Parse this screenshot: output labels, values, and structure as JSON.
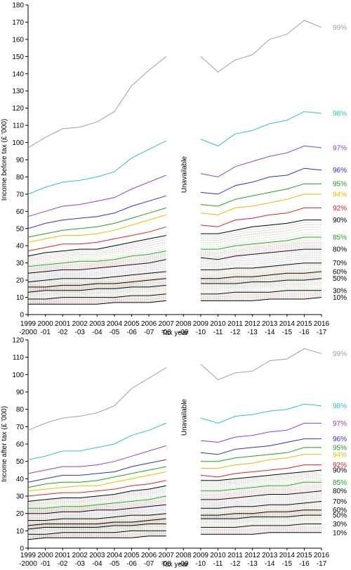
{
  "chart_data": [
    {
      "type": "line",
      "panel": "top",
      "ylabel": "Income before tax (£ '000)",
      "xlabel": "Tax year",
      "ylim": [
        0,
        180
      ],
      "yticks": [
        0,
        10,
        20,
        30,
        40,
        50,
        60,
        70,
        80,
        90,
        100,
        110,
        120,
        130,
        140,
        150,
        160,
        170,
        180
      ],
      "categories": [
        {
          "top": "1999",
          "bottom": "-2000"
        },
        {
          "top": "2000",
          "bottom": "-01"
        },
        {
          "top": "2001",
          "bottom": "-02"
        },
        {
          "top": "2002",
          "bottom": "-03"
        },
        {
          "top": "2003",
          "bottom": "-04"
        },
        {
          "top": "2004",
          "bottom": "-05"
        },
        {
          "top": "2005",
          "bottom": "-06"
        },
        {
          "top": "2006",
          "bottom": "-07"
        },
        {
          "top": "2007",
          "bottom": "-08"
        },
        {
          "top": "2008",
          "bottom": "-09"
        },
        {
          "top": "2009",
          "bottom": "-10"
        },
        {
          "top": "2010",
          "bottom": "-11"
        },
        {
          "top": "2011",
          "bottom": "-12"
        },
        {
          "top": "2012",
          "bottom": "-13"
        },
        {
          "top": "2013",
          "bottom": "-14"
        },
        {
          "top": "2014",
          "bottom": "-15"
        },
        {
          "top": "2015",
          "bottom": "-16"
        },
        {
          "top": "2016",
          "bottom": "-17"
        }
      ],
      "gap_label": "Unavailable",
      "series": [
        {
          "name": "99%",
          "color": "#a0a0a0",
          "values": [
            97,
            103,
            108,
            109,
            112,
            118,
            133,
            142,
            150,
            null,
            150,
            141,
            148,
            151,
            160,
            163,
            171,
            167
          ]
        },
        {
          "name": "98%",
          "color": "#2ec4c4",
          "values": [
            70,
            74,
            77,
            78,
            80,
            83,
            91,
            96,
            101,
            null,
            102,
            98,
            105,
            107,
            111,
            113,
            118,
            117
          ]
        },
        {
          "name": "97%",
          "color": "#9040c0",
          "values": [
            57,
            60,
            63,
            64,
            66,
            68,
            73,
            77,
            81,
            null,
            82,
            80,
            86,
            89,
            92,
            94,
            98,
            97
          ]
        },
        {
          "name": "96%",
          "color": "#3030c0",
          "values": [
            50,
            53,
            55,
            56,
            57,
            59,
            63,
            66,
            69,
            null,
            71,
            70,
            75,
            77,
            80,
            81,
            85,
            84
          ]
        },
        {
          "name": "95%",
          "color": "#20a020",
          "values": [
            45,
            47,
            49,
            50,
            51,
            53,
            56,
            59,
            62,
            null,
            64,
            63,
            67,
            69,
            71,
            73,
            76,
            76
          ]
        },
        {
          "name": "94%",
          "color": "#e0c000",
          "values": [
            42,
            44,
            46,
            46,
            47,
            49,
            52,
            55,
            58,
            null,
            59,
            58,
            62,
            63,
            65,
            67,
            70,
            70
          ]
        },
        {
          "name": "92%",
          "color": "#e02020",
          "values": [
            37,
            39,
            41,
            41,
            42,
            44,
            46,
            48,
            51,
            null,
            52,
            51,
            55,
            56,
            58,
            59,
            62,
            62
          ]
        },
        {
          "name": "90%",
          "color": "#000000",
          "values": [
            34,
            36,
            37,
            38,
            38,
            40,
            42,
            44,
            46,
            null,
            47,
            47,
            49,
            51,
            52,
            53,
            55,
            55
          ]
        },
        {
          "name": "85%",
          "color": "#20a020",
          "values": [
            28,
            29,
            30,
            31,
            31,
            32,
            34,
            35,
            37,
            null,
            38,
            38,
            40,
            41,
            42,
            43,
            45,
            45
          ]
        },
        {
          "name": "80%",
          "color": "#000000",
          "values": [
            24,
            25,
            26,
            26,
            27,
            28,
            29,
            30,
            32,
            null,
            33,
            32,
            34,
            35,
            36,
            37,
            38,
            38
          ]
        },
        {
          "name": "70%",
          "color": "#000000",
          "values": [
            19,
            20,
            21,
            21,
            21,
            22,
            23,
            24,
            25,
            null,
            26,
            26,
            27,
            27,
            28,
            29,
            30,
            30
          ]
        },
        {
          "name": "60%",
          "color": "#000000",
          "values": [
            16,
            16,
            17,
            17,
            18,
            18,
            19,
            20,
            21,
            null,
            21,
            21,
            22,
            22,
            23,
            24,
            24,
            25
          ]
        },
        {
          "name": "50%",
          "color": "#000000",
          "values": [
            13,
            14,
            14,
            14,
            15,
            15,
            16,
            16,
            17,
            null,
            18,
            18,
            18,
            19,
            19,
            20,
            20,
            21
          ]
        },
        {
          "name": "30%",
          "color": "#000000",
          "values": [
            9,
            9,
            10,
            10,
            10,
            10,
            11,
            11,
            12,
            null,
            12,
            12,
            13,
            13,
            13,
            14,
            14,
            14
          ]
        },
        {
          "name": "10%",
          "color": "#000000",
          "values": [
            6,
            6,
            6,
            6,
            6,
            7,
            7,
            7,
            8,
            null,
            8,
            8,
            8,
            8,
            9,
            9,
            9,
            10
          ]
        }
      ]
    },
    {
      "type": "line",
      "panel": "bottom",
      "ylabel": "Income after tax (£ '000)",
      "xlabel": "Tax year",
      "ylim": [
        0,
        120
      ],
      "yticks": [
        0,
        10,
        20,
        30,
        40,
        50,
        60,
        70,
        80,
        90,
        100,
        110,
        120
      ],
      "categories": [
        {
          "top": "1999",
          "bottom": "-2000"
        },
        {
          "top": "2000",
          "bottom": "-01"
        },
        {
          "top": "2001",
          "bottom": "-02"
        },
        {
          "top": "2002",
          "bottom": "-03"
        },
        {
          "top": "2003",
          "bottom": "-04"
        },
        {
          "top": "2004",
          "bottom": "-05"
        },
        {
          "top": "2005",
          "bottom": "-06"
        },
        {
          "top": "2006",
          "bottom": "-07"
        },
        {
          "top": "2007",
          "bottom": "-08"
        },
        {
          "top": "2008",
          "bottom": "-09"
        },
        {
          "top": "2009",
          "bottom": "-10"
        },
        {
          "top": "2010",
          "bottom": "-11"
        },
        {
          "top": "2011",
          "bottom": "-12"
        },
        {
          "top": "2012",
          "bottom": "-13"
        },
        {
          "top": "2013",
          "bottom": "-14"
        },
        {
          "top": "2014",
          "bottom": "-15"
        },
        {
          "top": "2015",
          "bottom": "-16"
        },
        {
          "top": "2016",
          "bottom": "-17"
        }
      ],
      "gap_label": "Unavailable",
      "series": [
        {
          "name": "99%",
          "color": "#a0a0a0",
          "values": [
            68,
            72,
            75,
            76,
            78,
            82,
            92,
            98,
            104,
            null,
            106,
            97,
            101,
            102,
            108,
            109,
            115,
            112
          ]
        },
        {
          "name": "98%",
          "color": "#2ec4c4",
          "values": [
            51,
            53,
            56,
            56,
            58,
            60,
            65,
            68,
            72,
            null,
            75,
            72,
            76,
            77,
            79,
            80,
            83,
            82
          ]
        },
        {
          "name": "97%",
          "color": "#9040c0",
          "values": [
            43,
            45,
            47,
            47,
            48,
            50,
            53,
            56,
            59,
            null,
            62,
            61,
            64,
            65,
            67,
            68,
            72,
            72
          ]
        },
        {
          "name": "96%",
          "color": "#3030c0",
          "values": [
            38,
            40,
            42,
            42,
            43,
            44,
            47,
            49,
            51,
            null,
            55,
            54,
            57,
            58,
            59,
            61,
            63,
            63
          ]
        },
        {
          "name": "95%",
          "color": "#20a020",
          "values": [
            35,
            37,
            38,
            38,
            39,
            41,
            43,
            45,
            47,
            null,
            50,
            50,
            52,
            53,
            54,
            55,
            58,
            58
          ]
        },
        {
          "name": "94%",
          "color": "#e0c000",
          "values": [
            33,
            34,
            35,
            36,
            36,
            38,
            40,
            42,
            44,
            null,
            46,
            46,
            48,
            49,
            51,
            52,
            54,
            54
          ]
        },
        {
          "name": "92%",
          "color": "#e02020",
          "values": [
            30,
            31,
            32,
            32,
            33,
            34,
            36,
            37,
            39,
            null,
            42,
            41,
            43,
            44,
            45,
            46,
            48,
            48
          ]
        },
        {
          "name": "90%",
          "color": "#000000",
          "values": [
            27,
            28,
            29,
            29,
            30,
            31,
            33,
            34,
            36,
            null,
            39,
            39,
            40,
            41,
            42,
            43,
            44,
            45
          ]
        },
        {
          "name": "85%",
          "color": "#20a020",
          "values": [
            23,
            23,
            24,
            24,
            25,
            26,
            27,
            28,
            30,
            null,
            33,
            33,
            34,
            35,
            36,
            36,
            38,
            38
          ]
        },
        {
          "name": "80%",
          "color": "#000000",
          "values": [
            20,
            20,
            21,
            21,
            22,
            22,
            23,
            24,
            25,
            null,
            28,
            28,
            29,
            30,
            31,
            31,
            32,
            33
          ]
        },
        {
          "name": "70%",
          "color": "#000000",
          "values": [
            16,
            16,
            17,
            17,
            17,
            18,
            19,
            19,
            20,
            null,
            23,
            23,
            24,
            24,
            25,
            25,
            26,
            27
          ]
        },
        {
          "name": "60%",
          "color": "#000000",
          "values": [
            13,
            14,
            14,
            14,
            14,
            15,
            15,
            16,
            17,
            null,
            19,
            19,
            20,
            20,
            21,
            21,
            22,
            22
          ]
        },
        {
          "name": "50%",
          "color": "#000000",
          "values": [
            11,
            12,
            12,
            12,
            12,
            13,
            13,
            14,
            14,
            null,
            17,
            17,
            17,
            18,
            18,
            18,
            19,
            19
          ]
        },
        {
          "name": "30%",
          "color": "#000000",
          "values": [
            8,
            8,
            9,
            9,
            9,
            9,
            10,
            10,
            10,
            null,
            12,
            12,
            12,
            13,
            13,
            13,
            14,
            14
          ]
        },
        {
          "name": "10%",
          "color": "#000000",
          "values": [
            5,
            6,
            6,
            6,
            6,
            6,
            6,
            7,
            7,
            null,
            8,
            8,
            8,
            8,
            9,
            9,
            9,
            9
          ]
        }
      ]
    }
  ]
}
